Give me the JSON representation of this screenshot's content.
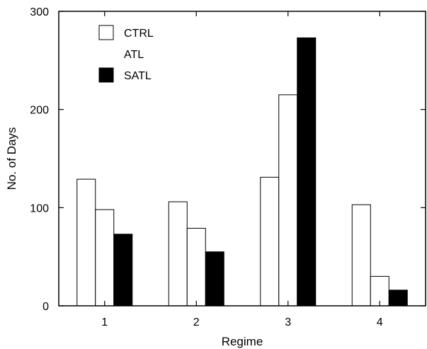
{
  "chart_data": {
    "type": "bar",
    "categories": [
      "1",
      "2",
      "3",
      "4"
    ],
    "series": [
      {
        "name": "CTRL",
        "values": [
          129,
          106,
          131,
          103
        ]
      },
      {
        "name": "ATL",
        "values": [
          98,
          79,
          215,
          30
        ]
      },
      {
        "name": "SATL",
        "values": [
          73,
          55,
          273,
          16
        ]
      }
    ],
    "xlabel": "Regime",
    "ylabel": "No. of Days",
    "ylim": [
      0,
      300
    ],
    "yticks": [
      0,
      100,
      200,
      300
    ],
    "grid": false,
    "legend_position": "top-left",
    "colors": {
      "CTRL": "#ffffff",
      "ATL": "#ffffff",
      "SATL": "#000000"
    }
  }
}
